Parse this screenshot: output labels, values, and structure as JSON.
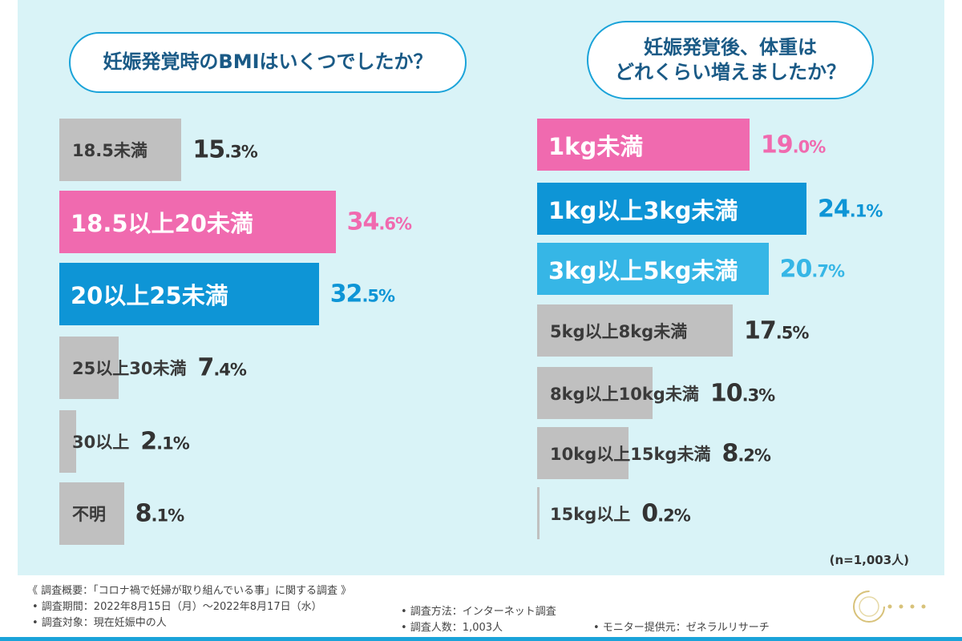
{
  "colors": {
    "pink": "#f06aaf",
    "blue_dark": "#0e95d6",
    "blue_light": "#36b6e6",
    "gray": "#c0c0c0",
    "text_dark": "#333333"
  },
  "chart_data": [
    {
      "type": "bar",
      "orientation": "horizontal",
      "title": "妊娠発覚時のBMIはいくつでしたか？",
      "categories": [
        "18.5未満",
        "18.5以上20未満",
        "20以上25未満",
        "25以上30未満",
        "30以上",
        "不明"
      ],
      "values": [
        15.3,
        34.6,
        32.5,
        7.4,
        2.1,
        8.1
      ],
      "value_labels": [
        {
          "int": "15",
          "dec": ".3%"
        },
        {
          "int": "34",
          "dec": ".6%"
        },
        {
          "int": "32",
          "dec": ".5%"
        },
        {
          "int": "7",
          "dec": ".4%"
        },
        {
          "int": "2",
          "dec": ".1%"
        },
        {
          "int": "8",
          "dec": ".1%"
        }
      ],
      "bar_colors": [
        "#c0c0c0",
        "#f06aaf",
        "#0e95d6",
        "#c0c0c0",
        "#c0c0c0",
        "#c0c0c0"
      ],
      "value_colors": [
        "#333333",
        "#f06aaf",
        "#0e95d6",
        "#333333",
        "#333333",
        "#333333"
      ],
      "xlim": [
        0,
        50
      ]
    },
    {
      "type": "bar",
      "orientation": "horizontal",
      "title": "妊娠発覚後、体重は\nどれくらい増えましたか？",
      "categories": [
        "1kg未満",
        "1kg以上3kg未満",
        "3kg以上5kg未満",
        "5kg以上8kg未満",
        "8kg以上10kg未満",
        "10kg以上15kg未満",
        "15kg以上"
      ],
      "values": [
        19.0,
        24.1,
        20.7,
        17.5,
        10.3,
        8.2,
        0.2
      ],
      "value_labels": [
        {
          "int": "19",
          "dec": ".0%"
        },
        {
          "int": "24",
          "dec": ".1%"
        },
        {
          "int": "20",
          "dec": ".7%"
        },
        {
          "int": "17",
          "dec": ".5%"
        },
        {
          "int": "10",
          "dec": ".3%"
        },
        {
          "int": "8",
          "dec": ".2%"
        },
        {
          "int": "0",
          "dec": ".2%"
        }
      ],
      "bar_colors": [
        "#f06aaf",
        "#0e95d6",
        "#36b6e6",
        "#c0c0c0",
        "#c0c0c0",
        "#c0c0c0",
        "#c0c0c0"
      ],
      "value_colors": [
        "#f06aaf",
        "#0e95d6",
        "#36b6e6",
        "#333333",
        "#333333",
        "#333333",
        "#333333"
      ],
      "xlim": [
        0,
        35.5
      ]
    }
  ],
  "sample_note": "(n=1,003人)",
  "footer": {
    "overview": "《 調査概要：「コロナ禍で妊婦が取り組んでいる事」に関する調査 》",
    "period": "• 調査期間：2022年8月15日（月）～2022年8月17日（水）",
    "target": "• 調査対象：現在妊娠中の人",
    "method": "• 調査方法：インターネット調査",
    "count": "• 調査人数：1,003人",
    "provider": "• モニター提供元：ゼネラルリサーチ"
  }
}
